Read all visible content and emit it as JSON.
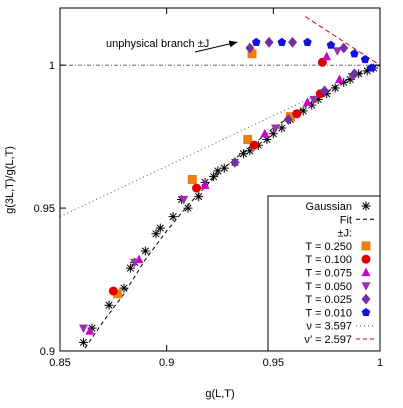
{
  "chart_data": {
    "type": "scatter",
    "title": "",
    "xlabel": "g(L,T)",
    "ylabel": "g(3L,T)/g(L,T)",
    "xlim": [
      0.85,
      1.0
    ],
    "ylim": [
      0.9,
      1.02
    ],
    "grid": false,
    "legend_position": "bottom-right",
    "x_ticks": [
      {
        "value": 0.85,
        "label": "0.85"
      },
      {
        "value": 0.9,
        "label": "0.9"
      },
      {
        "value": 0.95,
        "label": "0.95"
      },
      {
        "value": 1.0,
        "label": "1"
      }
    ],
    "y_ticks": [
      {
        "value": 0.9,
        "label": "0.9"
      },
      {
        "value": 0.95,
        "label": "0.95"
      },
      {
        "value": 1.0,
        "label": "1"
      }
    ],
    "reference_lines": [
      {
        "type": "hline",
        "y": 1.0,
        "style": "dash-dot",
        "color": "#555555"
      }
    ],
    "annotation": {
      "text": "unphysical branch ±J",
      "x": 0.906,
      "y": 1.015,
      "arrow_to": {
        "x": 0.935,
        "y": 1.007
      }
    },
    "series": [
      {
        "name": "Gaussian",
        "marker": "asterisk",
        "color": "#000000",
        "points": [
          [
            0.861,
            0.903
          ],
          [
            0.865,
            0.908
          ],
          [
            0.873,
            0.916
          ],
          [
            0.88,
            0.922
          ],
          [
            0.883,
            0.929
          ],
          [
            0.885,
            0.931
          ],
          [
            0.89,
            0.935
          ],
          [
            0.895,
            0.941
          ],
          [
            0.897,
            0.943
          ],
          [
            0.903,
            0.947
          ],
          [
            0.907,
            0.953
          ],
          [
            0.91,
            0.95
          ],
          [
            0.915,
            0.954
          ],
          [
            0.918,
            0.959
          ],
          [
            0.922,
            0.961
          ],
          [
            0.924,
            0.963
          ],
          [
            0.927,
            0.964
          ],
          [
            0.932,
            0.966
          ],
          [
            0.936,
            0.969
          ],
          [
            0.939,
            0.97
          ],
          [
            0.943,
            0.972
          ],
          [
            0.947,
            0.974
          ],
          [
            0.95,
            0.976
          ],
          [
            0.954,
            0.978
          ],
          [
            0.958,
            0.981
          ],
          [
            0.961,
            0.983
          ],
          [
            0.964,
            0.984
          ],
          [
            0.968,
            0.986
          ],
          [
            0.971,
            0.988
          ],
          [
            0.975,
            0.99
          ],
          [
            0.979,
            0.992
          ],
          [
            0.983,
            0.994
          ],
          [
            0.986,
            0.995
          ],
          [
            0.99,
            0.997
          ],
          [
            0.994,
            0.998
          ],
          [
            0.997,
            0.999
          ]
        ]
      },
      {
        "name": "Fit",
        "kind": "line",
        "dash": "4,3",
        "color": "#000000",
        "points": [
          [
            0.858,
            0.897
          ],
          [
            0.87,
            0.91
          ],
          [
            0.88,
            0.92
          ],
          [
            0.89,
            0.932
          ],
          [
            0.9,
            0.942
          ],
          [
            0.91,
            0.951
          ],
          [
            0.92,
            0.959
          ],
          [
            0.93,
            0.966
          ],
          [
            0.94,
            0.972
          ],
          [
            0.95,
            0.978
          ],
          [
            0.96,
            0.983
          ],
          [
            0.97,
            0.988
          ],
          [
            0.98,
            0.993
          ],
          [
            0.99,
            0.997
          ],
          [
            1.0,
            1.0
          ]
        ]
      },
      {
        "name": "T = 0.250",
        "marker": "square",
        "color": "#f07f10",
        "points": [
          [
            0.877,
            0.92
          ],
          [
            0.912,
            0.96
          ],
          [
            0.938,
            0.974
          ],
          [
            0.958,
            0.982
          ],
          [
            0.94,
            1.004
          ]
        ]
      },
      {
        "name": "T = 0.100",
        "marker": "circle",
        "color": "#e00000",
        "points": [
          [
            0.875,
            0.921
          ],
          [
            0.914,
            0.957
          ],
          [
            0.941,
            0.972
          ],
          [
            0.961,
            0.983
          ],
          [
            0.972,
            0.99
          ],
          [
            0.973,
            1.001
          ]
        ]
      },
      {
        "name": "T = 0.075",
        "marker": "triangle-up",
        "color": "#cc00cc",
        "points": [
          [
            0.864,
            0.907
          ],
          [
            0.887,
            0.932
          ],
          [
            0.918,
            0.958
          ],
          [
            0.946,
            0.976
          ],
          [
            0.966,
            0.987
          ],
          [
            0.981,
            0.995
          ],
          [
            0.975,
            1.003
          ]
        ]
      },
      {
        "name": "T = 0.050",
        "marker": "triangle-down",
        "color": "#9b2fad",
        "points": [
          [
            0.861,
            0.908
          ],
          [
            0.885,
            0.931
          ],
          [
            0.908,
            0.953
          ],
          [
            0.951,
            0.978
          ],
          [
            0.969,
            0.988
          ],
          [
            0.987,
            0.996
          ],
          [
            0.98,
            1.005
          ]
        ]
      },
      {
        "name": "T = 0.025",
        "marker": "diamond",
        "color": "#7030a0",
        "points": [
          [
            0.932,
            0.966
          ],
          [
            0.957,
            0.981
          ],
          [
            0.974,
            0.991
          ],
          [
            0.988,
            0.997
          ],
          [
            0.939,
            1.006
          ],
          [
            0.948,
            1.008
          ],
          [
            0.959,
            1.008
          ],
          [
            0.983,
            1.006
          ]
        ]
      },
      {
        "name": "T = 0.010",
        "marker": "pentagon",
        "color": "#1010e0",
        "points": [
          [
            0.996,
            0.999
          ],
          [
            0.942,
            1.008
          ],
          [
            0.954,
            1.008
          ],
          [
            0.966,
            1.008
          ],
          [
            0.977,
            1.007
          ],
          [
            0.988,
            1.004
          ],
          [
            0.993,
            1.002
          ]
        ]
      },
      {
        "name": "ν = 3.597",
        "kind": "line",
        "dash": "1,3",
        "color": "#555555",
        "points": [
          [
            0.85,
            0.947
          ],
          [
            1.0,
            1.0
          ]
        ]
      },
      {
        "name": "ν’ = 2.597",
        "kind": "line",
        "dash": "5,3",
        "color": "#e00000",
        "points": [
          [
            0.965,
            1.017
          ],
          [
            1.0,
            1.0
          ]
        ]
      }
    ],
    "legend": {
      "entries": [
        {
          "label": "Gaussian",
          "marker": "asterisk",
          "color": "#000000"
        },
        {
          "label": "Fit",
          "line": "dashed",
          "color": "#000000"
        },
        {
          "label": "±J:",
          "heading": true
        },
        {
          "label": "T = 0.250",
          "marker": "square",
          "color": "#f07f10"
        },
        {
          "label": "T = 0.100",
          "marker": "circle",
          "color": "#e00000"
        },
        {
          "label": "T = 0.075",
          "marker": "triangle-up",
          "color": "#cc00cc"
        },
        {
          "label": "T = 0.050",
          "marker": "triangle-down",
          "color": "#9b2fad"
        },
        {
          "label": "T = 0.025",
          "marker": "diamond",
          "color": "#7030a0"
        },
        {
          "label": "T = 0.010",
          "marker": "pentagon",
          "color": "#1010e0"
        },
        {
          "label": "ν = 3.597",
          "line": "dotted",
          "color": "#555555"
        },
        {
          "label": "ν’ = 2.597",
          "line": "dashed",
          "color": "#e00000"
        }
      ]
    }
  }
}
